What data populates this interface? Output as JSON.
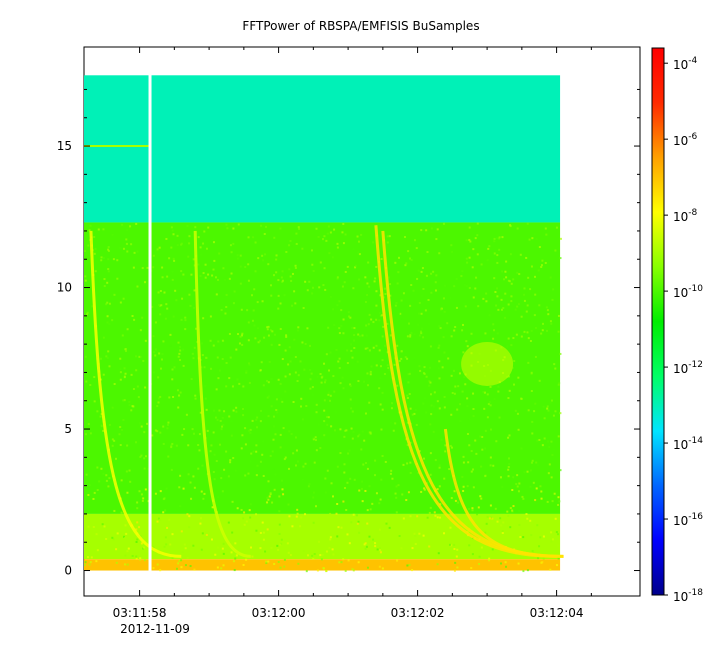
{
  "chart_data": {
    "type": "heatmap",
    "title": "FFTPower of RBSPA/EMFISIS  BuSamples",
    "xlabel": "",
    "ylabel": "",
    "date_label": "2012-11-09",
    "x_ticks": [
      {
        "time_s": 57.8,
        "label": "03:11:58",
        "major": true
      },
      {
        "time_s": 58.3,
        "label": "",
        "major": false
      },
      {
        "time_s": 58.8,
        "label": "",
        "major": false
      },
      {
        "time_s": 59.3,
        "label": "",
        "major": false
      },
      {
        "time_s": 59.8,
        "label": "03:12:00",
        "major": true
      },
      {
        "time_s": 60.3,
        "label": "",
        "major": false
      },
      {
        "time_s": 60.8,
        "label": "",
        "major": false
      },
      {
        "time_s": 61.3,
        "label": "",
        "major": false
      },
      {
        "time_s": 61.8,
        "label": "03:12:02",
        "major": true
      },
      {
        "time_s": 62.3,
        "label": "",
        "major": false
      },
      {
        "time_s": 62.8,
        "label": "",
        "major": false
      },
      {
        "time_s": 63.3,
        "label": "",
        "major": false
      },
      {
        "time_s": 63.8,
        "label": "03:12:04",
        "major": true
      },
      {
        "time_s": 64.3,
        "label": "",
        "major": false
      }
    ],
    "xlim_seconds": [
      57.0,
      65.0
    ],
    "y_ticks": [
      {
        "value": 0,
        "label": "0"
      },
      {
        "value": 5,
        "label": "5"
      },
      {
        "value": 10,
        "label": "10"
      },
      {
        "value": 15,
        "label": "15"
      }
    ],
    "ylim": [
      -0.9,
      18.5
    ],
    "data_extent": {
      "t_start": 57.0,
      "t_end": 63.85,
      "f_min": 0.0,
      "f_max": 17.5
    },
    "data_gap": {
      "t": 57.95
    },
    "background_levels": [
      {
        "f_range": [
          12.3,
          17.5
        ],
        "log10_power": -13
      },
      {
        "f_range": [
          2.0,
          12.3
        ],
        "log10_power": -10
      },
      {
        "f_range": [
          0.4,
          2.0
        ],
        "log10_power": -9
      },
      {
        "f_range": [
          0.0,
          0.4
        ],
        "log10_power": -7
      }
    ],
    "features": [
      {
        "kind": "line",
        "f": 15.0,
        "t_range": [
          57.0,
          57.95
        ],
        "log10_power": -9
      },
      {
        "kind": "chorus_tone",
        "t_start": 57.1,
        "t_end": 58.4,
        "f_top": 12.0,
        "log10_power": -8
      },
      {
        "kind": "chorus_tone",
        "t_start": 58.6,
        "t_end": 59.4,
        "f_top": 12.0,
        "log10_power": -8.5
      },
      {
        "kind": "chorus_tone",
        "t_start": 61.2,
        "t_end": 63.8,
        "f_top": 12.2,
        "log10_power": -7.5
      },
      {
        "kind": "chorus_tone",
        "t_start": 61.3,
        "t_end": 63.9,
        "f_top": 12.0,
        "log10_power": -7.5
      },
      {
        "kind": "chorus_tone",
        "t_start": 62.2,
        "t_end": 63.9,
        "f_top": 5.0,
        "log10_power": -7.5
      },
      {
        "kind": "blob",
        "t": 62.8,
        "f": 7.3,
        "log10_power": -8.5
      }
    ],
    "colorbar": {
      "scale": "log",
      "min_exp": -18,
      "max_exp": -3.6,
      "tick_exponents": [
        -4,
        -6,
        -8,
        -10,
        -12,
        -14,
        -16,
        -18
      ],
      "tick_base": "10",
      "colors": [
        "#00008b",
        "#0000ff",
        "#0066ff",
        "#00e5ff",
        "#00ff66",
        "#00ee00",
        "#88ff00",
        "#ffff00",
        "#ffa000",
        "#ff2a00",
        "#ff0000"
      ]
    }
  }
}
